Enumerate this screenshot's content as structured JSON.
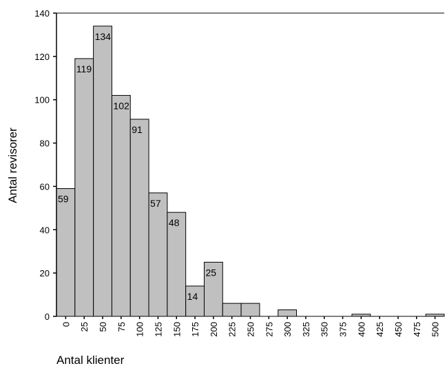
{
  "chart_data": {
    "type": "bar",
    "title": "",
    "xlabel": "Antal klienter",
    "ylabel": "Antal revisorer",
    "categories": [
      "0",
      "25",
      "50",
      "75",
      "100",
      "125",
      "150",
      "175",
      "200",
      "225",
      "250",
      "275",
      "300",
      "325",
      "350",
      "375",
      "400",
      "425",
      "450",
      "475",
      "500"
    ],
    "values": [
      59,
      119,
      134,
      102,
      91,
      57,
      48,
      14,
      25,
      6,
      6,
      0,
      3,
      0,
      0,
      0,
      1,
      0,
      0,
      0,
      1
    ],
    "data_labels": [
      "59",
      "119",
      "134",
      "102",
      "91",
      "57",
      "48",
      "14",
      "25",
      "",
      "",
      "",
      "",
      "",
      "",
      "",
      "",
      "",
      "",
      "",
      ""
    ],
    "ylim": [
      0,
      140
    ],
    "yticks": [
      "0",
      "20",
      "40",
      "60",
      "80",
      "100",
      "120",
      "140"
    ],
    "grid": false,
    "colors": {
      "bar_fill": "#c0c0c0",
      "bar_stroke": "#000000",
      "axis": "#000000"
    }
  }
}
